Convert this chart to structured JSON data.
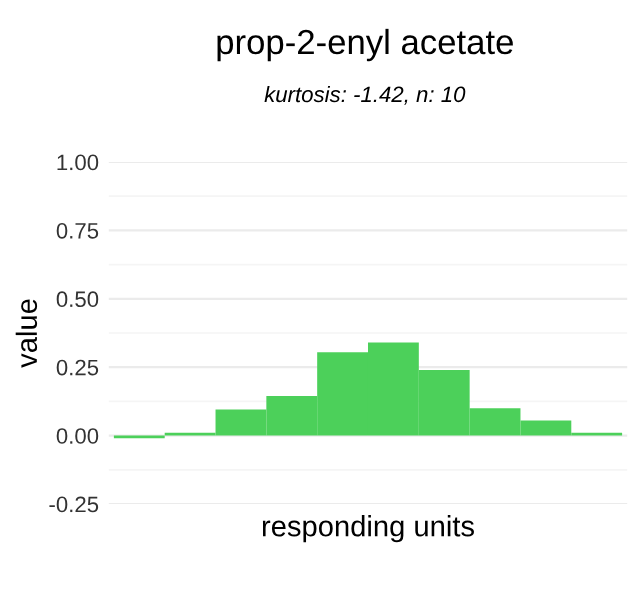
{
  "chart_data": {
    "type": "bar",
    "title": "prop-2-enyl acetate",
    "subtitle": "kurtosis: -1.42, n: 10",
    "xlabel": "responding units",
    "ylabel": "value",
    "categories": [
      null,
      null,
      null,
      null,
      null,
      null,
      null,
      null,
      null,
      null
    ],
    "values": [
      -0.01,
      0.01,
      0.095,
      0.145,
      0.305,
      0.34,
      0.24,
      0.1,
      0.055,
      0.01
    ],
    "color": "#4cd05a",
    "ylim": [
      -0.25,
      1
    ],
    "yticks": [
      {
        "value": -0.25,
        "label": "-0.25"
      },
      {
        "value": 0,
        "label": "0.00"
      },
      {
        "value": 0.25,
        "label": "0.25"
      },
      {
        "value": 0.5,
        "label": "0.50"
      },
      {
        "value": 0.75,
        "label": "0.75"
      },
      {
        "value": 1,
        "label": "1.00"
      }
    ],
    "grid": "y",
    "tick_labels": "y"
  }
}
